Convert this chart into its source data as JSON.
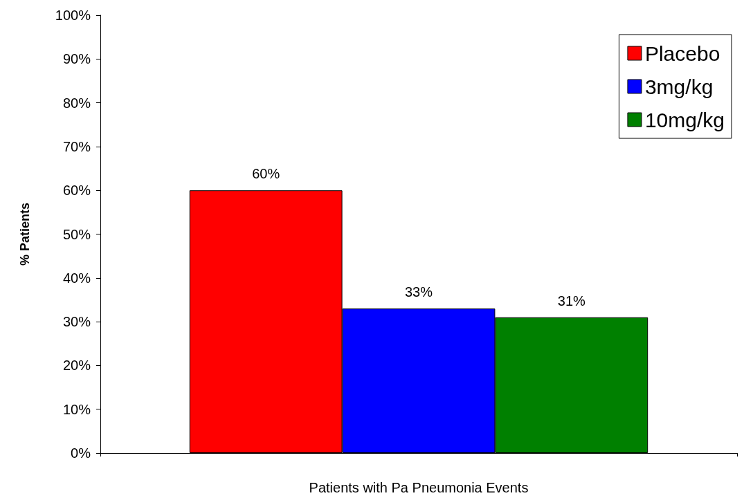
{
  "chart_data": {
    "type": "bar",
    "xlabel": "Patients with Pa Pneumonia Events",
    "ylabel": "% Patients",
    "categories": [
      null
    ],
    "series": [
      {
        "name": "Placebo",
        "color": "#ff0000",
        "values": [
          60
        ],
        "value_labels": [
          "60%"
        ]
      },
      {
        "name": "3mg/kg",
        "color": "#0000ff",
        "values": [
          33
        ],
        "value_labels": [
          "33%"
        ]
      },
      {
        "name": "10mg/kg",
        "color": "#008000",
        "values": [
          31
        ],
        "value_labels": [
          "31%"
        ]
      }
    ],
    "ylim": [
      0,
      100
    ],
    "yticks": [
      {
        "value": 0,
        "label": "0%"
      },
      {
        "value": 10,
        "label": "10%"
      },
      {
        "value": 20,
        "label": "20%"
      },
      {
        "value": 30,
        "label": "30%"
      },
      {
        "value": 40,
        "label": "40%"
      },
      {
        "value": 50,
        "label": "50%"
      },
      {
        "value": 60,
        "label": "60%"
      },
      {
        "value": 70,
        "label": "70%"
      },
      {
        "value": 80,
        "label": "80%"
      },
      {
        "value": 90,
        "label": "90%"
      },
      {
        "value": 100,
        "label": "100%"
      }
    ],
    "grid": false,
    "legend": "top right"
  }
}
